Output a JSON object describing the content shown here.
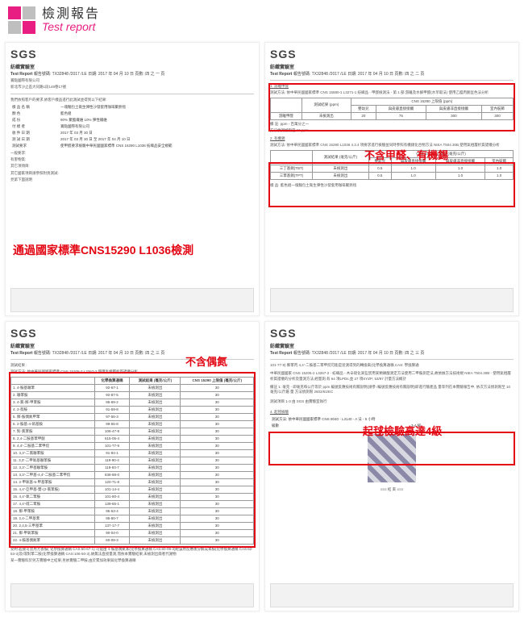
{
  "header": {
    "title_cn": "檢測報告",
    "title_en": "Test report"
  },
  "common": {
    "sgs": "SGS",
    "lab": "紡織實驗室",
    "report_label": "Test Report",
    "report_no": "報告號碼: TX32848 /2017 /LE 日期: 2017 年 04 月 10 日 頁數: 四 之 一 頁",
    "company": "賞點國際有限公司",
    "address": "新北市沙止區大同路1段148巷17號"
  },
  "report1": {
    "intro": "我們依照客戶的要求,依客戶樣品進行此測試並得到以下結果:",
    "rows": [
      [
        "樣 品 名 稱",
        "一塊麵包土衛生彈性沙發套用咖啡聚熱毯"
      ],
      [
        "顏 色",
        "藍色組"
      ],
      [
        "成 份",
        "90% 聚酯纖維 10% 彈性纖維"
      ],
      [
        "付 樣 者",
        "賞點國際有限公司"
      ],
      [
        "收 件 日 期",
        "2017 年 03 月 30 日"
      ],
      [
        "測 試 日 期",
        "2017 年 03 月 30 日 至 2017 年 04 月 10 日"
      ],
      [
        "測試要求",
        "使甲醛要求檢驗中華民國國家標準 CNS 15290 L1036 紡織品安全規範"
      ]
    ],
    "extra": [
      "",
      "",
      "一般要求:",
      "有害物質:",
      "",
      "其它項項目:",
      "",
      "其它國家項目請參照附頁測試:",
      "見第下面說明"
    ],
    "annotation": "通過國家標準CNS15290 L1036檢測"
  },
  "report2": {
    "page": "報告號碼: TX32848 /2017 /LE 日期: 2017 年 04 月 10 日 頁數: 四 之 二 頁",
    "section1": "1. 游離甲醛",
    "method1": "測試方法: 依中華民國國家標準 CNS 15580-1 L3271-1 紡織品 - 甲醛檢測法 - 第 1 部:游離及水解甲醛(水萃取法)  使用乙醯丙酮呈色法分析",
    "table1": {
      "headers_row1": [
        "",
        "測試結果 (ppm)",
        "CNS 15290 上限值 (ppm)",
        "",
        "",
        ""
      ],
      "headers_row2": [
        "",
        "",
        "嬰幼兒",
        "與皮膚直接接觸",
        "與皮膚非直接接觸",
        "室內裝飾"
      ],
      "row": [
        "游離甲醛",
        "未檢測出",
        "20",
        "75",
        "300",
        "300"
      ],
      "notes": [
        "備 註: ppm - 百萬分之一",
        "方法偵測極限是 16 ppm"
      ]
    },
    "section2": "2. 有機錫",
    "method2": "測試方法: 依中華民國國家標準 CNS 15290 L1036 4.3.4 項要求進行檢驗並同時參照有機錫化合物方法 NIEA T504.30B,使用氣相層析質譜儀分析",
    "table2": {
      "headers": [
        "",
        "測試結果 (毫克/公斤)",
        "CNS 15290 上限值 (毫克/公斤)",
        "",
        "",
        ""
      ],
      "sub": [
        "",
        "",
        "嬰幼兒",
        "與皮膚直接接觸",
        "與皮膚非直接接觸",
        "室內裝飾"
      ],
      "r1": [
        "三丁基錫(TBT)",
        "未檢測出",
        "0.5",
        "1.0",
        "1.0",
        "1.0"
      ],
      "r2": [
        "三苯基錫(TPT)",
        "未檢測出",
        "0.5",
        "1.0",
        "1.0",
        "1.0"
      ]
    },
    "annotation": "不含甲醛、有機錫",
    "sample_desc": "樣 品: 藍色組一塊麵包土衛生彈性沙發套用咖啡聚熱毯"
  },
  "report3": {
    "page": "報告號碼: TX32848 /2017 /LE 日期: 2017 年 04 月 10 日 頁數: 四 之 三 頁",
    "annotation": "不含偶氮",
    "method": "測試方法: 依中華民國國家標準 CNS 15205-2 L3267-2 使用氣相層析質譜儀分析",
    "table": {
      "headers": [
        "",
        "化學換算通稱",
        "測試結果 (毫克/公斤)",
        "CNS 15290 上限值 (毫克/公斤)"
      ],
      "rows": [
        [
          "1. 4-胺基聯苯",
          "92-67-1",
          "未檢測出",
          "30"
        ],
        [
          "2. 聯苯胺",
          "92-87-5",
          "未檢測出",
          "30"
        ],
        [
          "3. 4-氯-鄰-甲苯胺",
          "95-69-2",
          "未檢測出",
          "30"
        ],
        [
          "4. 2-萘胺",
          "91-59-8",
          "未檢測出",
          "30"
        ],
        [
          "5. 鄰-胺偶氮甲苯",
          "97-56-3",
          "未檢測出",
          "30"
        ],
        [
          "6. 2-胺基-4-硝基胺",
          "99-55-8",
          "未檢測出",
          "30"
        ],
        [
          "7. 對-氯苯胺",
          "106-47-8",
          "未檢測出",
          "30"
        ],
        [
          "8. 2,4-二胺基苯甲醚",
          "615-05-4",
          "未檢測出",
          "30"
        ],
        [
          "9. 4,4'-二胺基二苯甲烷",
          "101-77-9",
          "未檢測出",
          "30"
        ],
        [
          "10. 3,3'-二氯聯苯胺",
          "91-94-1",
          "未檢測出",
          "30"
        ],
        [
          "11. 3,3'-二甲氧基聯苯胺",
          "119-90-4",
          "未檢測出",
          "30"
        ],
        [
          "12. 3,3'-二甲基聯苯胺",
          "119-93-7",
          "未檢測出",
          "30"
        ],
        [
          "13. 3,3'-二甲基-4,4'-二胺基二苯甲烷",
          "838-88-0",
          "未檢測出",
          "30"
        ],
        [
          "14. 2-甲氧基-5-甲基苯胺",
          "120-71-8",
          "未檢測出",
          "30"
        ],
        [
          "15. 4,4'-亞甲基-雙-(2-氯苯胺)",
          "101-14-4",
          "未檢測出",
          "30"
        ],
        [
          "16. 4,4'-氧二苯胺",
          "101-80-4",
          "未檢測出",
          "30"
        ],
        [
          "17. 4,4'-硫二苯胺",
          "139-65-1",
          "未檢測出",
          "30"
        ],
        [
          "18. 鄰-甲苯胺",
          "95-53-4",
          "未檢測出",
          "30"
        ],
        [
          "19. 2,4-二甲基苯",
          "95-80-7",
          "未檢測出",
          "30"
        ],
        [
          "20. 2,4,5-三甲基苯",
          "137-17-7",
          "未檢測出",
          "30"
        ],
        [
          "21. 鄰-甲氧苯胺",
          "90-04-0",
          "未檢測出",
          "30"
        ],
        [
          "22. 4-胺基偶氮苯",
          "60-09-3",
          "未檢測出",
          "30"
        ]
      ],
      "footnote1": "受約:超重可禁用芳香胺( 化學換算通稱 CAS:60-67-1) 可能由 4-胺基偶氮苯(化學換算通稱 CAS:60-09-3)經還原反應後分解成苯胺(化學換算通稱 CAS:62-53-3)及/或對苯二胺(化學換算通稱 CAS:106-50-3),故無法直接量測,而依本實驗結果,未檢測出兩者代謝物",
      "footnote2": "某一實驗料於另方實驗中之結果,另依實驗二甲胺,由於累加效果與化學換算通稱"
    }
  },
  "report4": {
    "page": "報告號碼: TX32848 /2017 /LE 日期: 2017 年 04 月 10 日 頁數: 四 之 三 頁",
    "intro": "101-77-9) 鄰苯丙 4,4'-二胺基二苯甲烷可能是從測得到的轉換來(化學換算通稱 CAS: 學換算通",
    "para2": "中華民國國家 CNS 15205-2 L3267-2 - 紡織品 - 木辛硫化某些禁用某類磷酸測定方法使用二甲胺測定法,故依據方法技術規 NIEA T504.30B - 使用氣相層析質譜儀的分析及量測方法,經量測,有 64 項LPDs,並 27 項XYZP; 53/97 計量方法概計",
    "para3": "備註 1: 毫克 - 即毫克每公斤等於 ppm 編號反應技術有關說明(請參 /編號反應技術有關說明)即進行驗產品 量等列在本實驗報告中, 依次方法偵測限至 10 毫克/公斤屬 量 方法偵測限 2602/61/EC",
    "exec": "測試項目 1-3 由 SGS 由實驗室執行",
    "section": "4. 起毬檢驗",
    "method": "測試方法: 依中華民國國家標準 CNS 8040 - L3140 - A 法 - 5 小時",
    "row_label": "級數",
    "row_value": "3-4 級",
    "annotation": "起毬檢驗高達4級",
    "end": "≡≡≡ 結 束 ≡≡≡"
  }
}
